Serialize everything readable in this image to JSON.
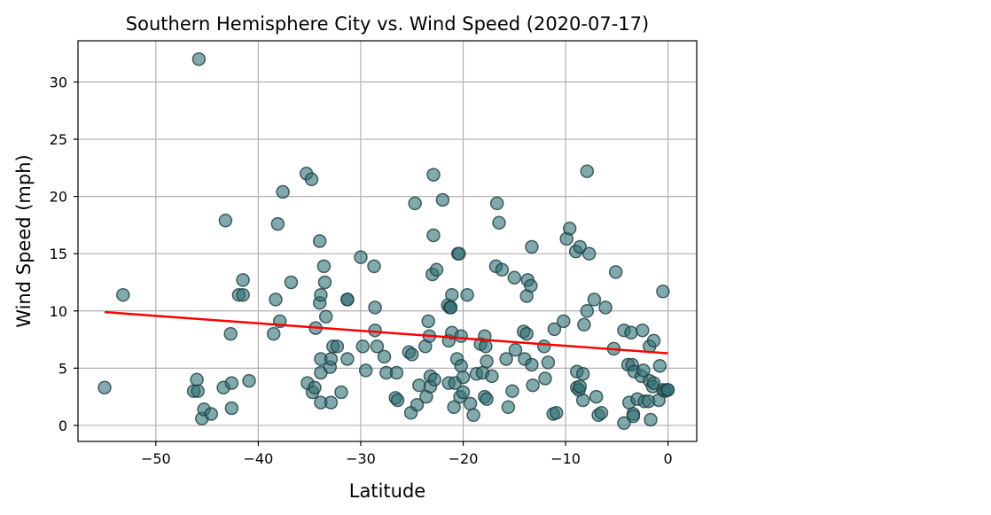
{
  "chart_data": {
    "type": "scatter",
    "title": "Southern Hemisphere City vs. Wind Speed (2020-07-17)",
    "xlabel": "Latitude",
    "ylabel": "Wind Speed (mph)",
    "xlim": [
      -57.6,
      2.8
    ],
    "ylim": [
      -1.4,
      33.6
    ],
    "xticks": [
      -50,
      -40,
      -30,
      -20,
      -10,
      0
    ],
    "yticks": [
      0,
      5,
      10,
      15,
      20,
      25,
      30
    ],
    "grid": true,
    "marker_color": "#2f6f73",
    "regression_color": "#ff0000",
    "regression": {
      "x": [
        -55,
        0
      ],
      "y": [
        9.9,
        6.3
      ]
    },
    "points": [
      [
        -55.0,
        3.3
      ],
      [
        -53.2,
        11.4
      ],
      [
        -46.3,
        3.0
      ],
      [
        -46.0,
        4.0
      ],
      [
        -45.9,
        3.0
      ],
      [
        -45.8,
        32.0
      ],
      [
        -45.5,
        0.6
      ],
      [
        -45.3,
        1.4
      ],
      [
        -44.6,
        1.0
      ],
      [
        -43.4,
        3.3
      ],
      [
        -43.2,
        17.9
      ],
      [
        -42.7,
        8.0
      ],
      [
        -42.6,
        1.5
      ],
      [
        -42.6,
        3.7
      ],
      [
        -41.9,
        11.4
      ],
      [
        -41.5,
        12.7
      ],
      [
        -41.5,
        11.4
      ],
      [
        -40.9,
        3.9
      ],
      [
        -38.5,
        8.0
      ],
      [
        -38.3,
        11.0
      ],
      [
        -38.1,
        17.6
      ],
      [
        -37.9,
        9.1
      ],
      [
        -37.6,
        20.4
      ],
      [
        -36.8,
        12.5
      ],
      [
        -35.3,
        22.0
      ],
      [
        -35.2,
        3.7
      ],
      [
        -34.8,
        21.5
      ],
      [
        -34.7,
        2.9
      ],
      [
        -34.5,
        3.3
      ],
      [
        -34.4,
        8.5
      ],
      [
        -34.0,
        16.1
      ],
      [
        -34.0,
        10.7
      ],
      [
        -33.9,
        11.4
      ],
      [
        -33.9,
        5.8
      ],
      [
        -33.9,
        2.0
      ],
      [
        -33.9,
        4.6
      ],
      [
        -33.6,
        13.9
      ],
      [
        -33.5,
        12.5
      ],
      [
        -33.4,
        9.5
      ],
      [
        -33.0,
        5.1
      ],
      [
        -32.9,
        5.8
      ],
      [
        -32.9,
        2.0
      ],
      [
        -32.7,
        6.9
      ],
      [
        -32.3,
        6.9
      ],
      [
        -31.9,
        2.9
      ],
      [
        -31.3,
        11.0
      ],
      [
        -31.3,
        11.0
      ],
      [
        -31.3,
        5.8
      ],
      [
        -30.0,
        14.7
      ],
      [
        -29.8,
        6.9
      ],
      [
        -29.5,
        4.8
      ],
      [
        -28.7,
        13.9
      ],
      [
        -28.6,
        10.3
      ],
      [
        -28.6,
        8.3
      ],
      [
        -28.4,
        6.9
      ],
      [
        -27.7,
        6.0
      ],
      [
        -27.5,
        4.6
      ],
      [
        -26.6,
        2.4
      ],
      [
        -26.5,
        4.6
      ],
      [
        -26.4,
        2.2
      ],
      [
        -25.3,
        6.4
      ],
      [
        -25.1,
        1.1
      ],
      [
        -25.0,
        6.2
      ],
      [
        -24.7,
        19.4
      ],
      [
        -24.5,
        1.8
      ],
      [
        -24.3,
        3.5
      ],
      [
        -23.7,
        6.9
      ],
      [
        -23.6,
        2.5
      ],
      [
        -23.4,
        9.1
      ],
      [
        -23.3,
        7.8
      ],
      [
        -23.2,
        4.3
      ],
      [
        -23.2,
        3.4
      ],
      [
        -23.0,
        13.2
      ],
      [
        -22.9,
        21.9
      ],
      [
        -22.9,
        16.6
      ],
      [
        -22.8,
        4.0
      ],
      [
        -22.6,
        13.6
      ],
      [
        -22.0,
        19.7
      ],
      [
        -21.5,
        10.5
      ],
      [
        -21.4,
        7.4
      ],
      [
        -21.4,
        3.7
      ],
      [
        -21.3,
        10.3
      ],
      [
        -21.2,
        10.3
      ],
      [
        -21.1,
        11.4
      ],
      [
        -21.1,
        8.1
      ],
      [
        -20.9,
        1.6
      ],
      [
        -20.8,
        3.7
      ],
      [
        -20.6,
        5.8
      ],
      [
        -20.5,
        15.0
      ],
      [
        -20.4,
        15.0
      ],
      [
        -20.3,
        2.5
      ],
      [
        -20.2,
        7.8
      ],
      [
        -20.2,
        5.2
      ],
      [
        -20.0,
        4.2
      ],
      [
        -20.0,
        2.9
      ],
      [
        -19.6,
        11.4
      ],
      [
        -19.3,
        1.9
      ],
      [
        -19.0,
        0.9
      ],
      [
        -18.7,
        4.5
      ],
      [
        -18.3,
        7.1
      ],
      [
        -18.1,
        4.6
      ],
      [
        -17.9,
        2.5
      ],
      [
        -17.9,
        7.8
      ],
      [
        -17.8,
        6.9
      ],
      [
        -17.7,
        5.6
      ],
      [
        -17.7,
        2.3
      ],
      [
        -17.2,
        4.3
      ],
      [
        -16.8,
        13.9
      ],
      [
        -16.7,
        19.4
      ],
      [
        -16.5,
        17.7
      ],
      [
        -16.2,
        13.6
      ],
      [
        -15.8,
        5.8
      ],
      [
        -15.6,
        1.6
      ],
      [
        -15.2,
        3.0
      ],
      [
        -15.0,
        12.9
      ],
      [
        -14.9,
        6.6
      ],
      [
        -14.1,
        8.2
      ],
      [
        -14.0,
        5.8
      ],
      [
        -13.8,
        8.0
      ],
      [
        -13.8,
        11.3
      ],
      [
        -13.7,
        12.7
      ],
      [
        -13.4,
        12.2
      ],
      [
        -13.3,
        5.3
      ],
      [
        -13.3,
        15.6
      ],
      [
        -13.2,
        3.5
      ],
      [
        -12.1,
        6.9
      ],
      [
        -12.0,
        4.1
      ],
      [
        -11.7,
        5.5
      ],
      [
        -11.2,
        1.0
      ],
      [
        -11.1,
        8.4
      ],
      [
        -10.9,
        1.1
      ],
      [
        -10.2,
        9.1
      ],
      [
        -9.9,
        16.3
      ],
      [
        -9.6,
        17.2
      ],
      [
        -9.0,
        15.2
      ],
      [
        -8.9,
        4.7
      ],
      [
        -8.9,
        3.3
      ],
      [
        -8.7,
        3.1
      ],
      [
        -8.6,
        15.6
      ],
      [
        -8.6,
        3.4
      ],
      [
        -8.3,
        2.2
      ],
      [
        -8.3,
        4.5
      ],
      [
        -8.2,
        8.8
      ],
      [
        -7.9,
        22.2
      ],
      [
        -7.9,
        10.0
      ],
      [
        -7.7,
        15.0
      ],
      [
        -7.2,
        11.0
      ],
      [
        -7.0,
        2.5
      ],
      [
        -6.8,
        0.9
      ],
      [
        -6.5,
        1.1
      ],
      [
        -6.1,
        10.3
      ],
      [
        -5.3,
        6.7
      ],
      [
        -5.1,
        13.4
      ],
      [
        -4.3,
        8.3
      ],
      [
        -4.3,
        0.2
      ],
      [
        -3.9,
        5.3
      ],
      [
        -3.8,
        2.0
      ],
      [
        -3.6,
        8.1
      ],
      [
        -3.5,
        5.3
      ],
      [
        -3.4,
        1.0
      ],
      [
        -3.4,
        0.8
      ],
      [
        -3.3,
        4.7
      ],
      [
        -3.0,
        2.3
      ],
      [
        -2.6,
        4.3
      ],
      [
        -2.5,
        8.3
      ],
      [
        -2.4,
        4.8
      ],
      [
        -2.3,
        2.1
      ],
      [
        -1.9,
        2.1
      ],
      [
        -1.8,
        3.9
      ],
      [
        -1.8,
        6.9
      ],
      [
        -1.7,
        0.5
      ],
      [
        -1.5,
        3.4
      ],
      [
        -1.4,
        7.4
      ],
      [
        -1.4,
        3.7
      ],
      [
        -0.9,
        2.2
      ],
      [
        -0.8,
        5.2
      ],
      [
        -0.5,
        3.1
      ],
      [
        -0.5,
        11.7
      ],
      [
        -0.3,
        3.0
      ],
      [
        -0.1,
        3.1
      ],
      [
        0.0,
        3.1
      ]
    ]
  }
}
